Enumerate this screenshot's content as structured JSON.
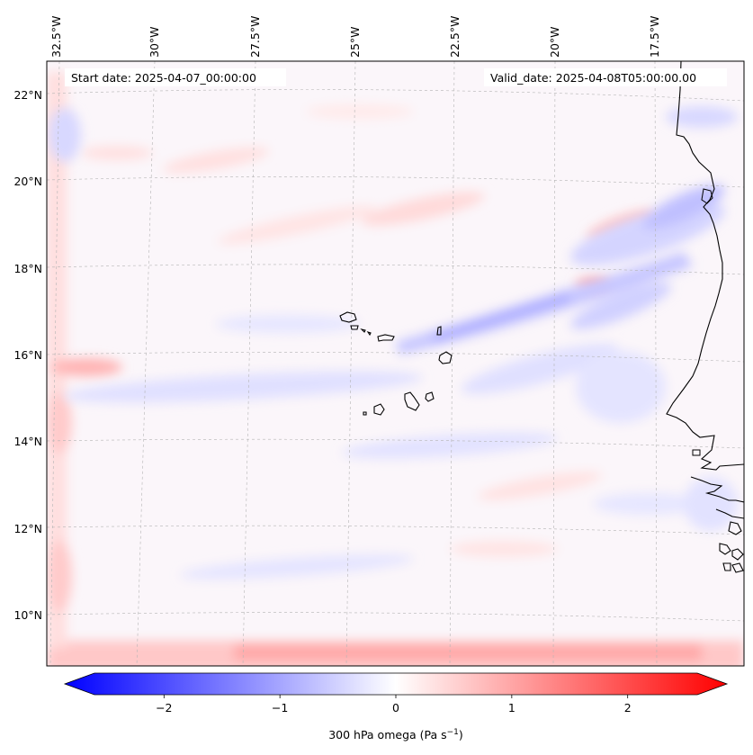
{
  "header": {
    "start_date": "Start date: 2025-04-07_00:00:00",
    "valid_date": "Valid_date: 2025-04-08T05:00:00.00"
  },
  "map": {
    "lon_labels": [
      "32.5°W",
      "30°W",
      "27.5°W",
      "25°W",
      "22.5°W",
      "20°W",
      "17.5°W"
    ],
    "lat_labels": [
      "22°N",
      "20°N",
      "18°N",
      "16°N",
      "14°N",
      "12°N",
      "10°N"
    ],
    "features": [
      "Cape Verde islands",
      "West African coastline"
    ]
  },
  "colorbar": {
    "label": "300 hPa omega (Pa s",
    "label_exp": "−1",
    "label_close": ")",
    "tick_labels": [
      "−2",
      "−1",
      "0",
      "1",
      "2"
    ],
    "min": -2.6,
    "max": 2.6,
    "colors": {
      "low": "#0000ff",
      "mid": "#ffffff",
      "high": "#ff0000"
    }
  },
  "chart_data": {
    "type": "heatmap",
    "variable": "300 hPa omega",
    "units": "Pa s^-1",
    "vmin": -2.6,
    "vmax": 2.6,
    "ticks": [
      -2,
      -1,
      0,
      1,
      2
    ],
    "lon_range": [
      -33,
      -15.5
    ],
    "lat_range": [
      8.9,
      22.8
    ]
  }
}
